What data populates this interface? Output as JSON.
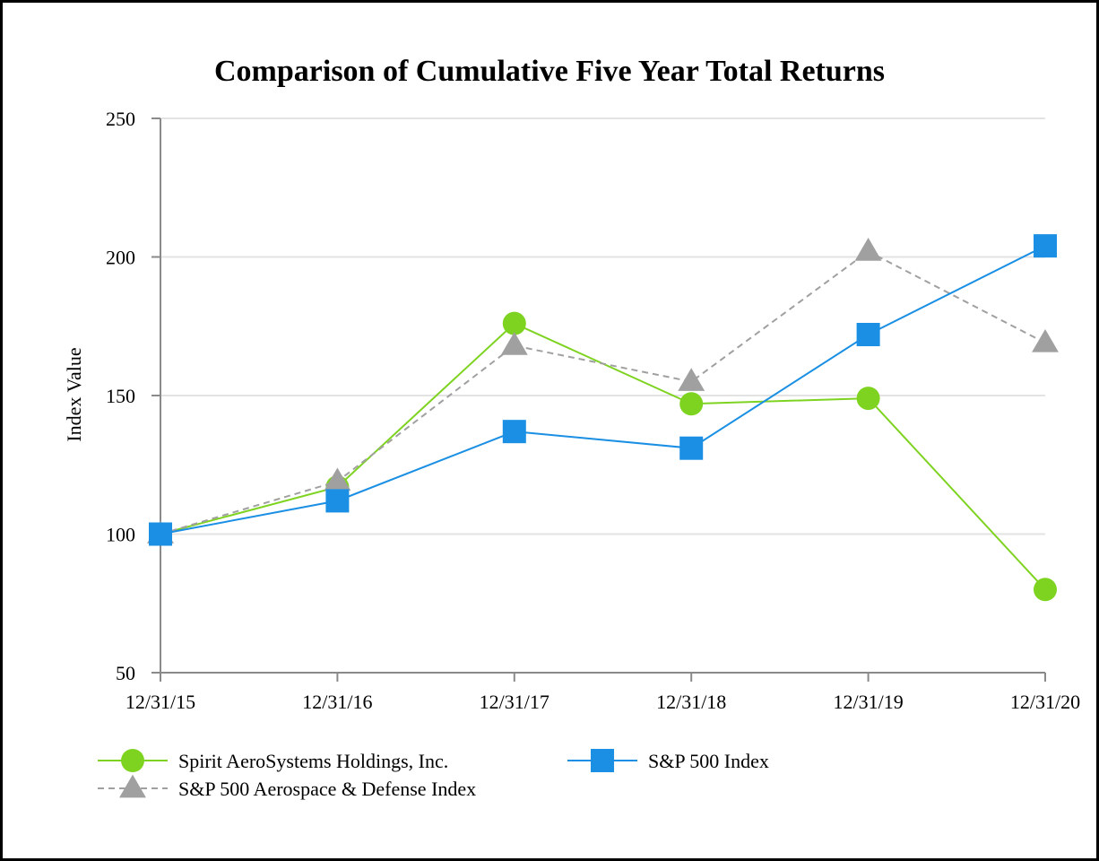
{
  "chart_data": {
    "type": "line",
    "title": "Comparison of Cumulative Five Year Total Returns",
    "xlabel": "",
    "ylabel": "Index Value",
    "categories": [
      "12/31/15",
      "12/31/16",
      "12/31/17",
      "12/31/18",
      "12/31/19",
      "12/31/20"
    ],
    "ylim": [
      50,
      250
    ],
    "yticks": [
      50,
      100,
      150,
      200,
      250
    ],
    "grid": true,
    "legend_position": "bottom",
    "series": [
      {
        "name": "Spirit AeroSystems Holdings, Inc.",
        "values": [
          100,
          117,
          176,
          147,
          149,
          80
        ],
        "color": "#7ed321",
        "marker": "circle",
        "line_style": "solid"
      },
      {
        "name": "S&P 500 Index",
        "values": [
          100,
          112,
          137,
          131,
          172,
          204
        ],
        "color": "#1a8fe3",
        "marker": "square",
        "line_style": "solid"
      },
      {
        "name": "S&P 500 Aerospace & Defense Index",
        "values": [
          100,
          119,
          168,
          155,
          202,
          169
        ],
        "color": "#a0a0a0",
        "marker": "triangle",
        "line_style": "dashed"
      }
    ]
  }
}
